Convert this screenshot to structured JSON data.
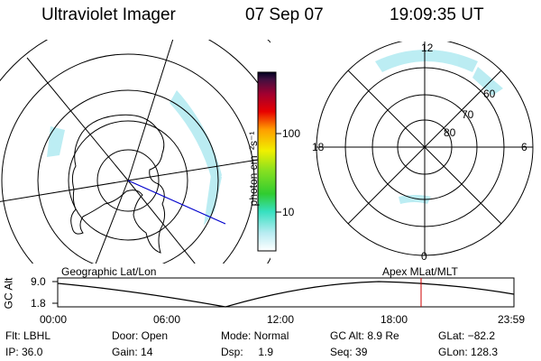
{
  "header": {
    "title": "Ultraviolet Imager",
    "date": "07 Sep 07",
    "time": "19:09:35 UT"
  },
  "geo_map": {
    "label": "Geographic Lat/Lon"
  },
  "colorbar": {
    "unit_label": "photon cm⁻²s⁻¹",
    "ticks": [
      "100",
      "10"
    ]
  },
  "mlt_map": {
    "label": "Apex  MLat/MLT",
    "mlt_labels": {
      "top": "12",
      "left": "18",
      "right": "6",
      "bottom": "0"
    },
    "lat_labels": [
      "60",
      "70",
      "80"
    ]
  },
  "altitude_plot": {
    "ylabel": "GC Alt",
    "yticks": [
      "9.0",
      "1.8"
    ],
    "xticks": [
      "00:00",
      "06:00",
      "12:00",
      "18:00",
      "23:59"
    ],
    "marker_time": "19:09:35"
  },
  "footer": {
    "flt": "Flt: LBHL",
    "door": "Door: Open",
    "mode": "Mode: Normal",
    "gc_alt": "GC Alt: 8.9 Re",
    "glat": "GLat: −82.2",
    "ip": "IP: 36.0",
    "gain": "Gain: 14",
    "dsp": "Dsp:     1.9",
    "seq": "Seq: 39",
    "glon": "GLon: 128.3"
  },
  "colors": {
    "marker": "#cc0000",
    "orbit_line": "#0000cc",
    "aurora": "#b8ecf2"
  }
}
